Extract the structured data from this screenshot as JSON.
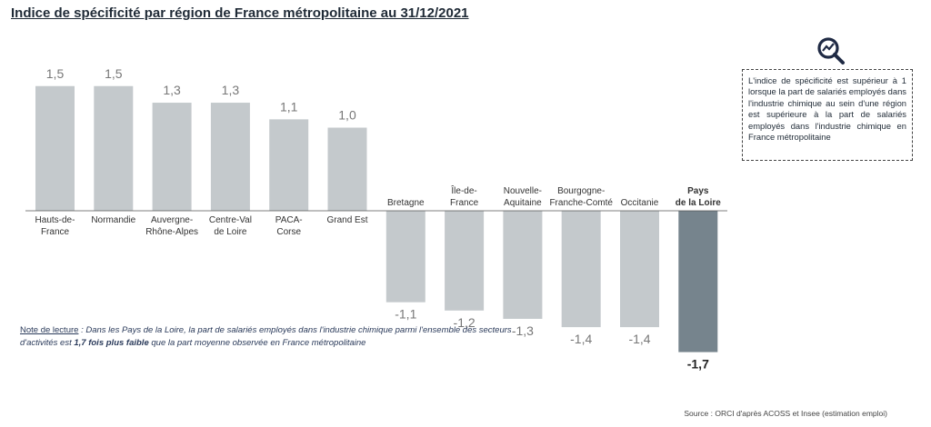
{
  "title": "Indice de spécificité par région de France métropolitaine au 31/12/2021",
  "chart_data": {
    "type": "bar",
    "categories": [
      "Hauts-de-France",
      "Normandie",
      "Auvergne-Rhône-Alpes",
      "Centre-Val de Loire",
      "PACA-Corse",
      "Grand Est",
      "Bretagne",
      "Île-de-France",
      "Nouvelle-Aquitaine",
      "Bourgogne-Franche-Comté",
      "Occitanie",
      "Pays de la Loire"
    ],
    "category_lines": [
      [
        "Hauts-de-",
        "France"
      ],
      [
        "Normandie"
      ],
      [
        "Auvergne-",
        "Rhône-Alpes"
      ],
      [
        "Centre-Val",
        "de Loire"
      ],
      [
        "PACA-",
        "Corse"
      ],
      [
        "Grand Est"
      ],
      [
        "Bretagne"
      ],
      [
        "Île-de-",
        "France"
      ],
      [
        "Nouvelle-",
        "Aquitaine"
      ],
      [
        "Bourgogne-",
        "Franche-Comté"
      ],
      [
        "Occitanie"
      ],
      [
        "Pays",
        "de la Loire"
      ]
    ],
    "values": [
      1.5,
      1.5,
      1.3,
      1.3,
      1.1,
      1.0,
      -1.1,
      -1.2,
      -1.3,
      -1.4,
      -1.4,
      -1.7
    ],
    "value_labels": [
      "1,5",
      "1,5",
      "1,3",
      "1,3",
      "1,1",
      "1,0",
      "-1,1",
      "-1,2",
      "-1,3",
      "-1,4",
      "-1,4",
      "-1,7"
    ],
    "highlight": "Pays de la Loire",
    "colors": {
      "bar": "#c4c9cc",
      "highlight": "#76848d",
      "baseline": "#555555"
    }
  },
  "note": {
    "lead": "Note de lecture",
    "text_before": " : Dans les Pays de la Loire, la part de salariés employés dans l'industrie chimique parmi l'ensemble des secteurs d'activités est ",
    "bold": "1,7 fois plus faible",
    "text_after": " que la part moyenne observée en France métropolitaine"
  },
  "infobox": {
    "icon": "magnifier-chart-icon",
    "text": "L'indice de spécificité est supérieur à 1 lorsque la part de salariés employés dans l'industrie chimique au sein d'une région est supérieure à la part de salariés employés dans l'industrie chimique en France métropolitaine"
  },
  "source": "Source : ORCI d'après ACOSS et Insee (estimation emploi)"
}
